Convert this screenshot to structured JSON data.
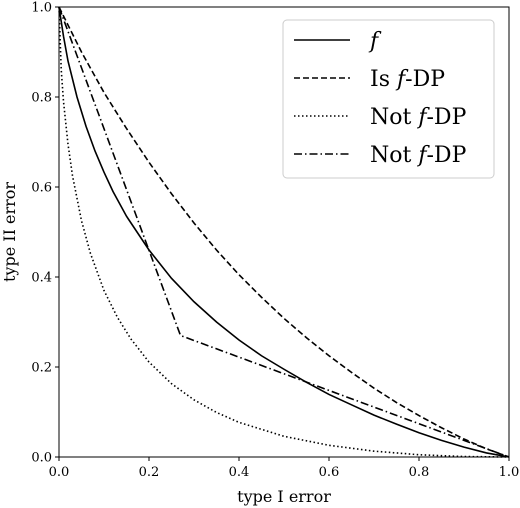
{
  "chart_data": {
    "type": "line",
    "xlabel": "type I error",
    "ylabel": "type II error",
    "xlim": [
      0.0,
      1.0
    ],
    "ylim": [
      0.0,
      1.0
    ],
    "x_ticks": [
      "0.0",
      "0.2",
      "0.4",
      "0.6",
      "0.8",
      "1.0"
    ],
    "y_ticks": [
      "0.0",
      "0.2",
      "0.4",
      "0.6",
      "0.8",
      "1.0"
    ],
    "grid": false,
    "legend_position": "top-right",
    "series": [
      {
        "name": "f",
        "name_parts": [
          {
            "text": "f",
            "italic": true
          }
        ],
        "style": "solid",
        "color": "#000000",
        "x": [
          0.0,
          0.01,
          0.02,
          0.04,
          0.06,
          0.08,
          0.1,
          0.12,
          0.15,
          0.2,
          0.25,
          0.3,
          0.35,
          0.4,
          0.45,
          0.5,
          0.55,
          0.6,
          0.65,
          0.7,
          0.75,
          0.8,
          0.85,
          0.9,
          0.95,
          1.0
        ],
        "y": [
          1.0,
          0.935,
          0.88,
          0.8,
          0.735,
          0.68,
          0.633,
          0.59,
          0.535,
          0.46,
          0.397,
          0.345,
          0.3,
          0.26,
          0.225,
          0.195,
          0.166,
          0.139,
          0.116,
          0.093,
          0.073,
          0.054,
          0.037,
          0.022,
          0.009,
          0.0
        ]
      },
      {
        "name": "Is f-DP",
        "name_parts": [
          {
            "text": "Is ",
            "italic": false
          },
          {
            "text": "f",
            "italic": true
          },
          {
            "text": "-DP",
            "italic": false
          }
        ],
        "style": "dashed",
        "color": "#000000",
        "x": [
          0.0,
          0.05,
          0.1,
          0.15,
          0.2,
          0.25,
          0.3,
          0.35,
          0.4,
          0.45,
          0.5,
          0.55,
          0.6,
          0.65,
          0.7,
          0.75,
          0.8,
          0.85,
          0.9,
          0.95,
          1.0
        ],
        "y": [
          1.0,
          0.9,
          0.81,
          0.73,
          0.655,
          0.585,
          0.52,
          0.46,
          0.405,
          0.355,
          0.308,
          0.265,
          0.225,
          0.188,
          0.153,
          0.121,
          0.092,
          0.065,
          0.04,
          0.018,
          0.0
        ]
      },
      {
        "name": "Not f-DP",
        "name_parts": [
          {
            "text": "Not ",
            "italic": false
          },
          {
            "text": "f",
            "italic": true
          },
          {
            "text": "-DP",
            "italic": false
          }
        ],
        "style": "dotted",
        "color": "#000000",
        "x": [
          0.0,
          0.005,
          0.01,
          0.02,
          0.03,
          0.05,
          0.07,
          0.1,
          0.13,
          0.16,
          0.2,
          0.25,
          0.3,
          0.35,
          0.4,
          0.5,
          0.6,
          0.7,
          0.8,
          0.9,
          1.0
        ],
        "y": [
          1.0,
          0.86,
          0.79,
          0.695,
          0.625,
          0.525,
          0.452,
          0.37,
          0.31,
          0.262,
          0.211,
          0.163,
          0.127,
          0.099,
          0.077,
          0.046,
          0.026,
          0.013,
          0.005,
          0.001,
          0.0
        ]
      },
      {
        "name": "Not f-DP",
        "name_parts": [
          {
            "text": "Not ",
            "italic": false
          },
          {
            "text": "f",
            "italic": true
          },
          {
            "text": "-DP",
            "italic": false
          }
        ],
        "style": "dashdot",
        "color": "#000000",
        "x": [
          0.0,
          0.27,
          1.0
        ],
        "y": [
          1.0,
          0.27,
          0.0
        ]
      }
    ]
  }
}
